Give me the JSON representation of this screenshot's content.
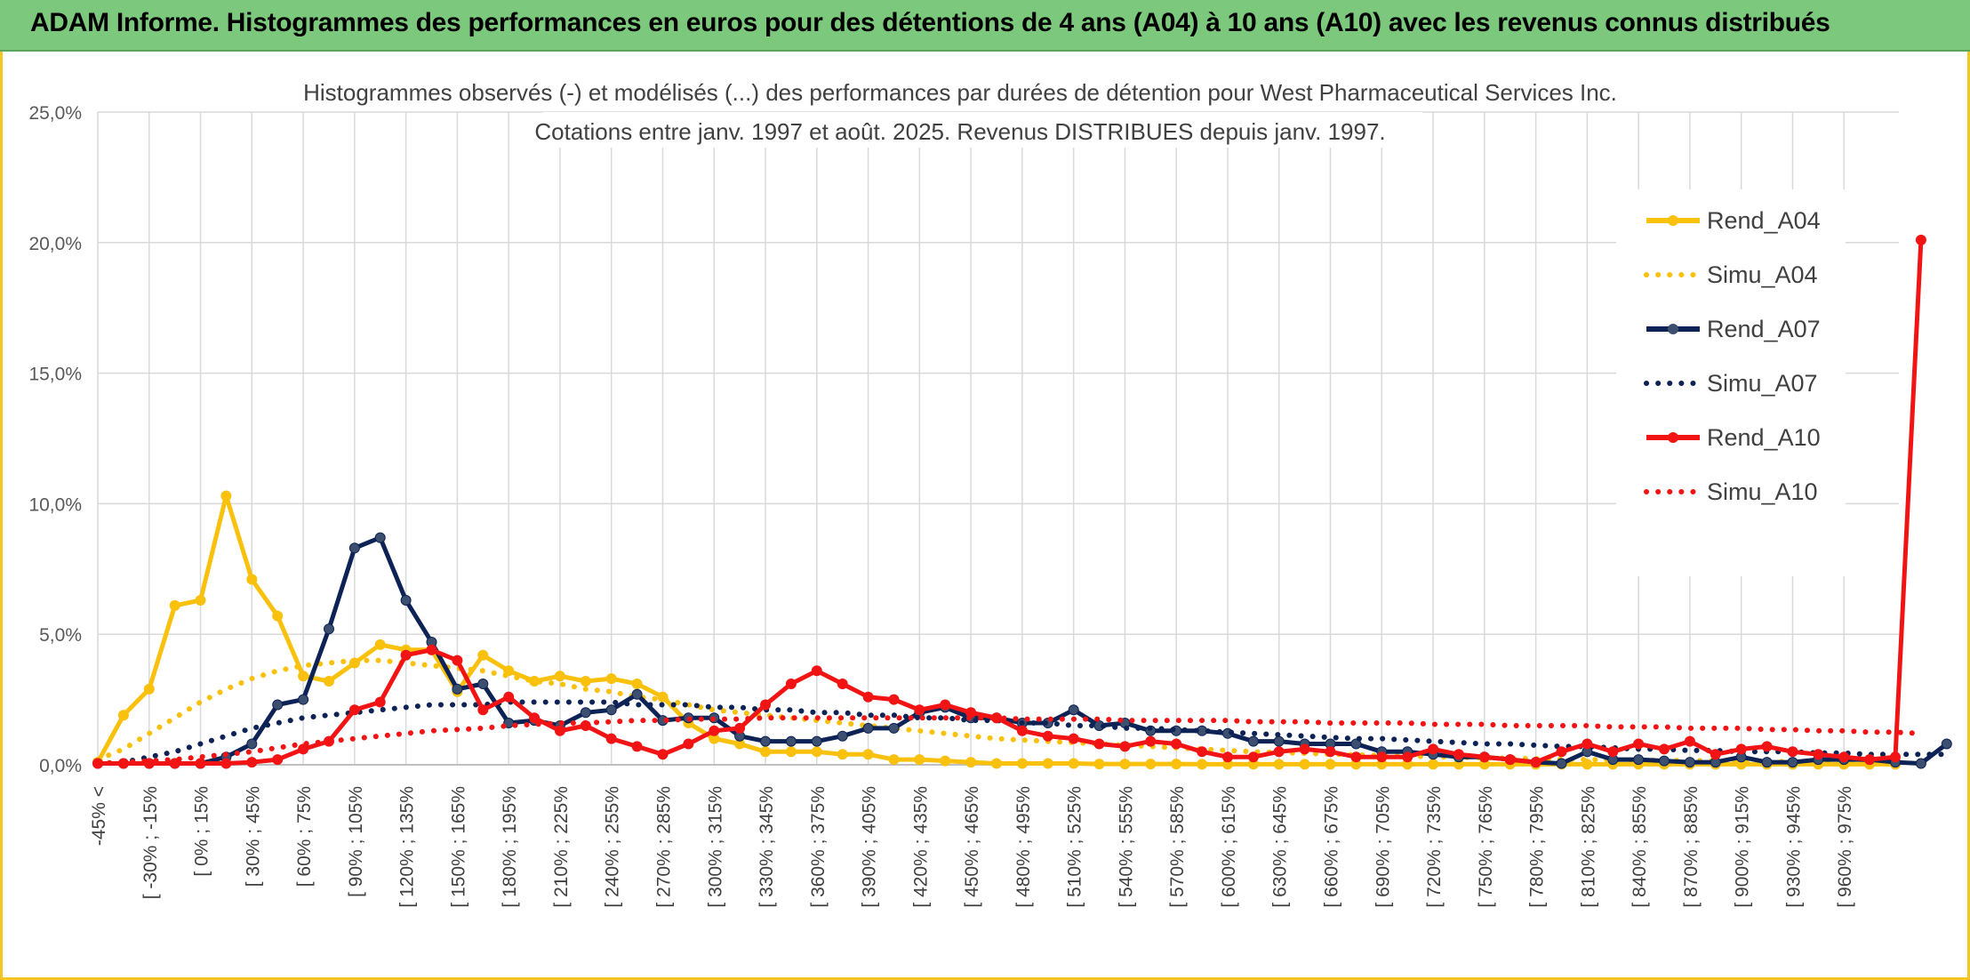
{
  "header": {
    "title": "ADAM Informe. Histogrammes des performances en euros pour des détentions de 4 ans (A04) à 10 ans (A10) avec les revenus connus distribués"
  },
  "colors": {
    "A04": "#f9c00c",
    "A07": "#0d2356",
    "A10": "#f21414",
    "grid": "#d9d9d9",
    "header_bg": "#7cc87c"
  },
  "chart_data": {
    "type": "line",
    "title": "Histogrammes observés (-) et modélisés (...) des performances par durées de détention pour West Pharmaceutical Services Inc.",
    "subtitle": "Cotations entre janv. 1997 et août. 2025. Revenus DISTRIBUES depuis janv. 1997.",
    "ylim": [
      0,
      25
    ],
    "yticks": [
      "0,0%",
      "5,0%",
      "10,0%",
      "15,0%",
      "20,0%",
      "25,0%"
    ],
    "grid": true,
    "legend_position": "right",
    "x_labels": [
      "-45% <",
      "[ -30% ; -15%",
      "[ 0% ; 15%",
      "[ 30% ; 45%",
      "[ 60% ; 75%",
      "[ 90% ; 105%",
      "[ 120% ; 135%",
      "[ 150% ; 165%",
      "[ 180% ; 195%",
      "[ 210% ; 225%",
      "[ 240% ; 255%",
      "[ 270% ; 285%",
      "[ 300% ; 315%",
      "[ 330% ; 345%",
      "[ 360% ; 375%",
      "[ 390% ; 405%",
      "[ 420% ; 435%",
      "[ 450% ; 465%",
      "[ 480% ; 495%",
      "[ 510% ; 525%",
      "[ 540% ; 555%",
      "[ 570% ; 585%",
      "[ 600% ; 615%",
      "[ 630% ; 645%",
      "[ 660% ; 675%",
      "[ 690% ; 705%",
      "[ 720% ; 735%",
      "[ 750% ; 765%",
      "[ 780% ; 795%",
      "[ 810% ; 825%",
      "[ 840% ; 855%",
      "[ 870% ; 885%",
      "[ 900% ; 915%",
      "[ 930% ; 945%",
      "[ 960% ; 975%"
    ],
    "series": [
      {
        "name": "Rend_A04",
        "style": "solid",
        "color": "#f9c00c",
        "values": [
          0.1,
          1.9,
          2.9,
          6.1,
          6.3,
          10.3,
          7.1,
          5.7,
          3.4,
          3.2,
          3.9,
          4.6,
          4.4,
          4.4,
          2.8,
          4.2,
          3.6,
          3.2,
          3.4,
          3.2,
          3.3,
          3.1,
          2.6,
          1.6,
          1.0,
          0.8,
          0.5,
          0.5,
          0.5,
          0.4,
          0.4,
          0.2,
          0.2,
          0.15,
          0.1,
          0.05,
          0.05,
          0.05,
          0.05,
          0.03,
          0.03,
          0.03,
          0.03,
          0.02,
          0.02,
          0.02,
          0.02,
          0.02,
          0.02,
          0.02,
          0.02,
          0.02,
          0.02,
          0.02,
          0.02,
          0.02,
          0.02,
          0.02,
          0.02,
          0.02,
          0.02,
          0.02,
          0.02,
          0.02,
          0.02,
          0.02,
          0.02,
          0.02,
          0.02,
          0.02,
          0.02
        ]
      },
      {
        "name": "Simu_A04",
        "style": "dotted",
        "color": "#f9c00c",
        "values": [
          0.2,
          0.6,
          1.2,
          1.8,
          2.4,
          2.9,
          3.3,
          3.6,
          3.8,
          3.9,
          4.0,
          4.0,
          3.9,
          3.8,
          3.7,
          3.6,
          3.4,
          3.2,
          3.1,
          2.9,
          2.8,
          2.6,
          2.5,
          2.3,
          2.1,
          2.0,
          1.9,
          1.8,
          1.7,
          1.6,
          1.5,
          1.4,
          1.3,
          1.2,
          1.1,
          1.0,
          0.95,
          0.9,
          0.85,
          0.8,
          0.75,
          0.7,
          0.65,
          0.6,
          0.55,
          0.5,
          0.47,
          0.44,
          0.41,
          0.38,
          0.35,
          0.33,
          0.31,
          0.29,
          0.27,
          0.25,
          0.23,
          0.21,
          0.2,
          0.19,
          0.18,
          0.17,
          0.16,
          0.15,
          0.14,
          0.13,
          0.12,
          0.11,
          0.1,
          0.1,
          0.1
        ]
      },
      {
        "name": "Rend_A07",
        "style": "solid",
        "color": "#0d2356",
        "values": [
          0.05,
          0.05,
          0.05,
          0.05,
          0.05,
          0.3,
          0.8,
          2.3,
          2.5,
          5.2,
          8.3,
          8.7,
          6.3,
          4.7,
          2.9,
          3.1,
          1.6,
          1.7,
          1.5,
          2.0,
          2.1,
          2.7,
          1.7,
          1.8,
          1.8,
          1.1,
          0.9,
          0.9,
          0.9,
          1.1,
          1.4,
          1.4,
          2.0,
          2.2,
          1.8,
          1.8,
          1.6,
          1.6,
          2.1,
          1.5,
          1.6,
          1.3,
          1.3,
          1.3,
          1.2,
          0.9,
          0.9,
          0.8,
          0.8,
          0.8,
          0.5,
          0.5,
          0.4,
          0.3,
          0.3,
          0.2,
          0.1,
          0.05,
          0.5,
          0.2,
          0.2,
          0.15,
          0.1,
          0.1,
          0.3,
          0.1,
          0.1,
          0.2,
          0.2,
          0.2,
          0.1,
          0.05,
          0.8
        ]
      },
      {
        "name": "Simu_A07",
        "style": "dotted",
        "color": "#0d2356",
        "values": [
          0.05,
          0.1,
          0.3,
          0.5,
          0.8,
          1.1,
          1.4,
          1.6,
          1.8,
          1.9,
          2.0,
          2.1,
          2.2,
          2.3,
          2.3,
          2.3,
          2.4,
          2.4,
          2.4,
          2.4,
          2.4,
          2.3,
          2.3,
          2.3,
          2.2,
          2.2,
          2.1,
          2.1,
          2.0,
          2.0,
          1.9,
          1.9,
          1.8,
          1.8,
          1.7,
          1.7,
          1.6,
          1.6,
          1.5,
          1.5,
          1.4,
          1.4,
          1.35,
          1.3,
          1.25,
          1.2,
          1.15,
          1.1,
          1.05,
          1.0,
          1.0,
          0.95,
          0.9,
          0.85,
          0.8,
          0.8,
          0.75,
          0.7,
          0.7,
          0.65,
          0.6,
          0.6,
          0.55,
          0.55,
          0.5,
          0.5,
          0.5,
          0.45,
          0.45,
          0.4,
          0.4,
          0.4,
          0.4
        ]
      },
      {
        "name": "Rend_A10",
        "style": "solid",
        "color": "#f21414",
        "values": [
          0.05,
          0.05,
          0.05,
          0.05,
          0.05,
          0.05,
          0.1,
          0.2,
          0.6,
          0.9,
          2.1,
          2.4,
          4.2,
          4.4,
          4.0,
          2.1,
          2.6,
          1.8,
          1.3,
          1.5,
          1.0,
          0.7,
          0.4,
          0.8,
          1.3,
          1.4,
          2.3,
          3.1,
          3.6,
          3.1,
          2.6,
          2.5,
          2.1,
          2.3,
          2.0,
          1.8,
          1.3,
          1.1,
          1.0,
          0.8,
          0.7,
          0.9,
          0.8,
          0.5,
          0.3,
          0.3,
          0.5,
          0.6,
          0.5,
          0.3,
          0.3,
          0.3,
          0.6,
          0.4,
          0.3,
          0.2,
          0.1,
          0.5,
          0.8,
          0.5,
          0.8,
          0.6,
          0.9,
          0.4,
          0.6,
          0.7,
          0.5,
          0.4,
          0.3,
          0.2,
          0.3,
          20.1
        ]
      },
      {
        "name": "Simu_A10",
        "style": "dotted",
        "color": "#f21414",
        "values": [
          0.05,
          0.1,
          0.15,
          0.2,
          0.3,
          0.4,
          0.5,
          0.65,
          0.8,
          0.9,
          1.0,
          1.1,
          1.2,
          1.3,
          1.35,
          1.4,
          1.5,
          1.55,
          1.6,
          1.6,
          1.65,
          1.7,
          1.7,
          1.75,
          1.75,
          1.75,
          1.8,
          1.8,
          1.8,
          1.8,
          1.8,
          1.8,
          1.8,
          1.8,
          1.8,
          1.8,
          1.75,
          1.75,
          1.75,
          1.75,
          1.7,
          1.7,
          1.7,
          1.7,
          1.7,
          1.65,
          1.65,
          1.65,
          1.6,
          1.6,
          1.6,
          1.6,
          1.55,
          1.55,
          1.55,
          1.5,
          1.5,
          1.5,
          1.5,
          1.45,
          1.45,
          1.45,
          1.4,
          1.4,
          1.4,
          1.35,
          1.35,
          1.3,
          1.3,
          1.25,
          1.25,
          1.2
        ]
      }
    ]
  }
}
